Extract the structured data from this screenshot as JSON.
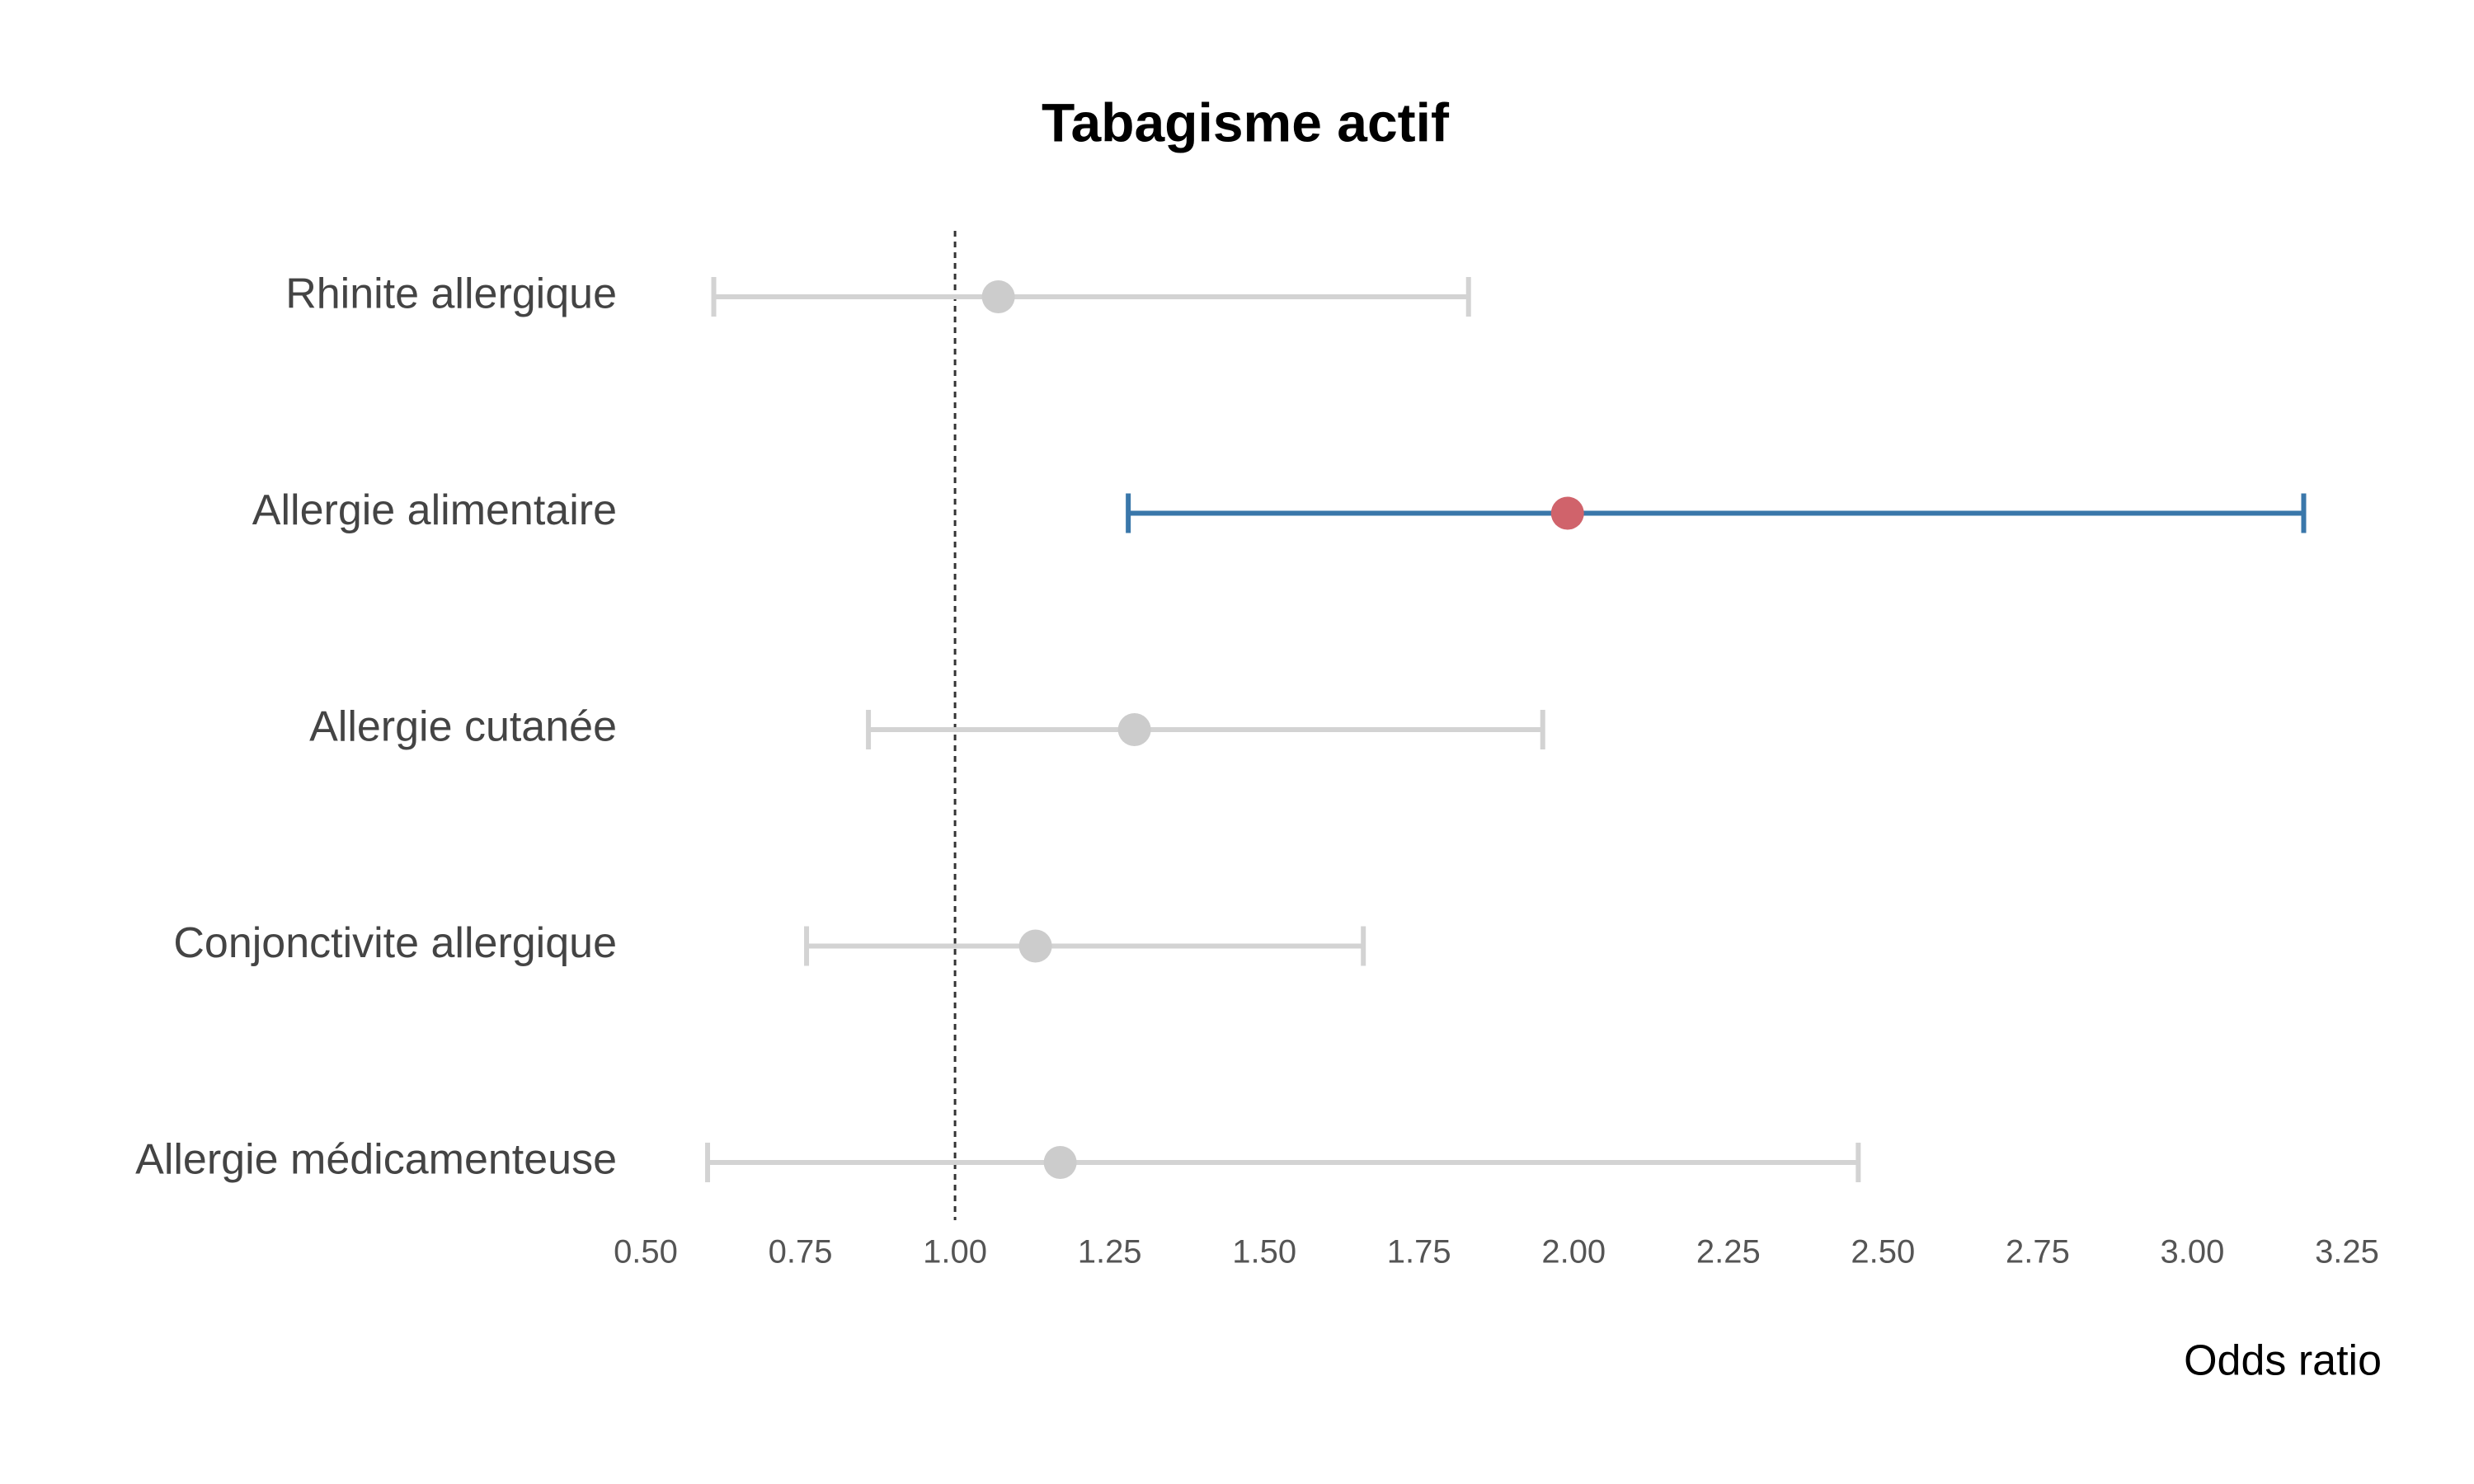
{
  "chart_data": {
    "type": "forest",
    "title": "Tabagisme actif",
    "x_label": "Odds ratio",
    "categories": [
      "Rhinite allergique",
      "Allergie alimentaire",
      "Allergie cutanée",
      "Conjonctivite allergique",
      "Allergie médicamenteuse"
    ],
    "values": [
      1.07,
      1.99,
      1.29,
      1.13,
      1.17
    ],
    "lower": [
      0.61,
      1.28,
      0.86,
      0.76,
      0.6
    ],
    "upper": [
      1.83,
      3.18,
      1.95,
      1.66,
      2.46
    ],
    "point_colors": [
      "#cccccc",
      "#d0636b",
      "#cccccc",
      "#cccccc",
      "#cccccc"
    ],
    "ci_colors": [
      "#d3d3d3",
      "#3a77aa",
      "#d3d3d3",
      "#d3d3d3",
      "#d3d3d3"
    ],
    "reference_line": 1,
    "xlim": [
      0.5,
      3.25
    ],
    "xticks": [
      {
        "value": 0.5,
        "label": "0.50"
      },
      {
        "value": 0.75,
        "label": "0.75"
      },
      {
        "value": 1,
        "label": "1.00"
      },
      {
        "value": 1.25,
        "label": "1.25"
      },
      {
        "value": 1.5,
        "label": "1.50"
      },
      {
        "value": 1.75,
        "label": "1.75"
      },
      {
        "value": 2,
        "label": "2.00"
      },
      {
        "value": 2.25,
        "label": "2.25"
      },
      {
        "value": 2.5,
        "label": "2.50"
      },
      {
        "value": 2.75,
        "label": "2.75"
      },
      {
        "value": 3,
        "label": "3.00"
      },
      {
        "value": 3.25,
        "label": "3.25"
      }
    ]
  }
}
